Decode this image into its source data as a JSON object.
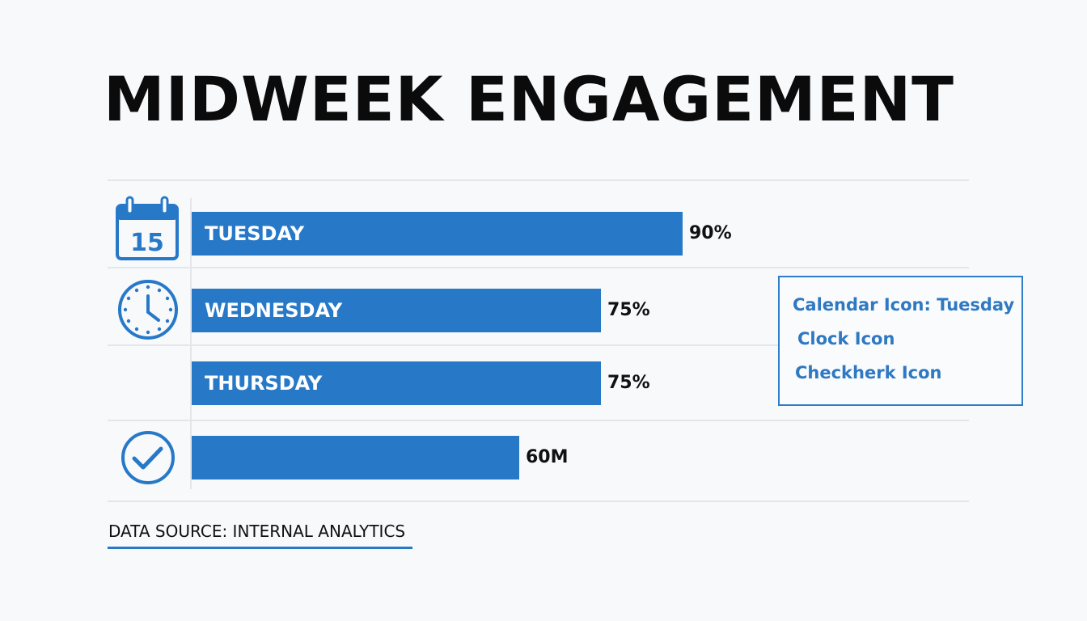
{
  "title": "MIDWEEK ENGAGEMENT",
  "chart_data": {
    "type": "bar",
    "orientation": "horizontal",
    "title": "MIDWEEK ENGAGEMENT",
    "categories": [
      "TUESDAY",
      "WEDNESDAY",
      "THURSDAY",
      ""
    ],
    "values": [
      90,
      75,
      75,
      60
    ],
    "value_labels": [
      "90%",
      "75%",
      "75%",
      "60M"
    ],
    "icons": [
      "calendar-icon",
      "clock-icon",
      "",
      "checkmark-icon"
    ],
    "calendar_day": "15",
    "bar_color": "#2779c8",
    "grid": true
  },
  "legend": {
    "items": [
      "Calendar Icon: Tuesday",
      "Clock Icon",
      "Checkherk Icon"
    ]
  },
  "source": "DATA SOURCE: INTERNAL ANALYTICS"
}
